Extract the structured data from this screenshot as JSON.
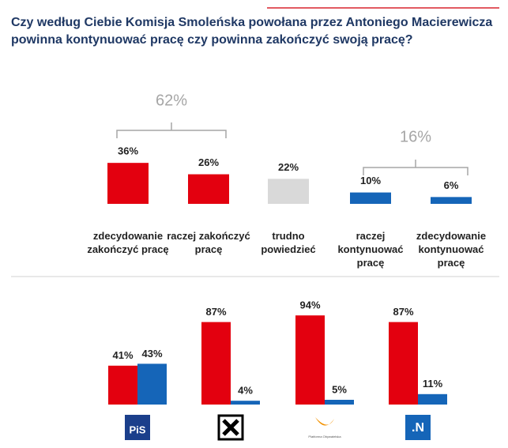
{
  "chart_data": [
    {
      "type": "bar",
      "title": "Czy według Ciebie Komisja Smoleńska powołana przez Antoniego Macierewicza\npowinna kontynuować pracę czy powinna zakończyć swoją pracę?",
      "categories": [
        "zdecydowanie\nzakończyć pracę",
        "raczej zakończyć\npracę",
        "trudno\npowiedzieć",
        "raczej\nkontynuować\npracę",
        "zdecydowanie\nkontynuować\npracę"
      ],
      "values": [
        36,
        26,
        22,
        10,
        6
      ],
      "value_labels": [
        "36%",
        "26%",
        "22%",
        "10%",
        "6%"
      ],
      "colors": [
        "#e3000f",
        "#e3000f",
        "#d9d9d9",
        "#1565b8",
        "#1565b8"
      ],
      "annotations": [
        "62%",
        "16%"
      ]
    },
    {
      "type": "grouped_bar",
      "categories": [
        "PiS",
        null,
        "Platforma Obywatelska",
        ".N"
      ],
      "series": [
        {
          "color": "#e3000f",
          "values": [
            41,
            87,
            94,
            87
          ],
          "value_labels": [
            "41%",
            "87%",
            "94%",
            "87%"
          ]
        },
        {
          "color": "#1565b8",
          "values": [
            43,
            4,
            5,
            11
          ],
          "value_labels": [
            "43%",
            "4%",
            "5%",
            "11%"
          ]
        }
      ]
    }
  ]
}
